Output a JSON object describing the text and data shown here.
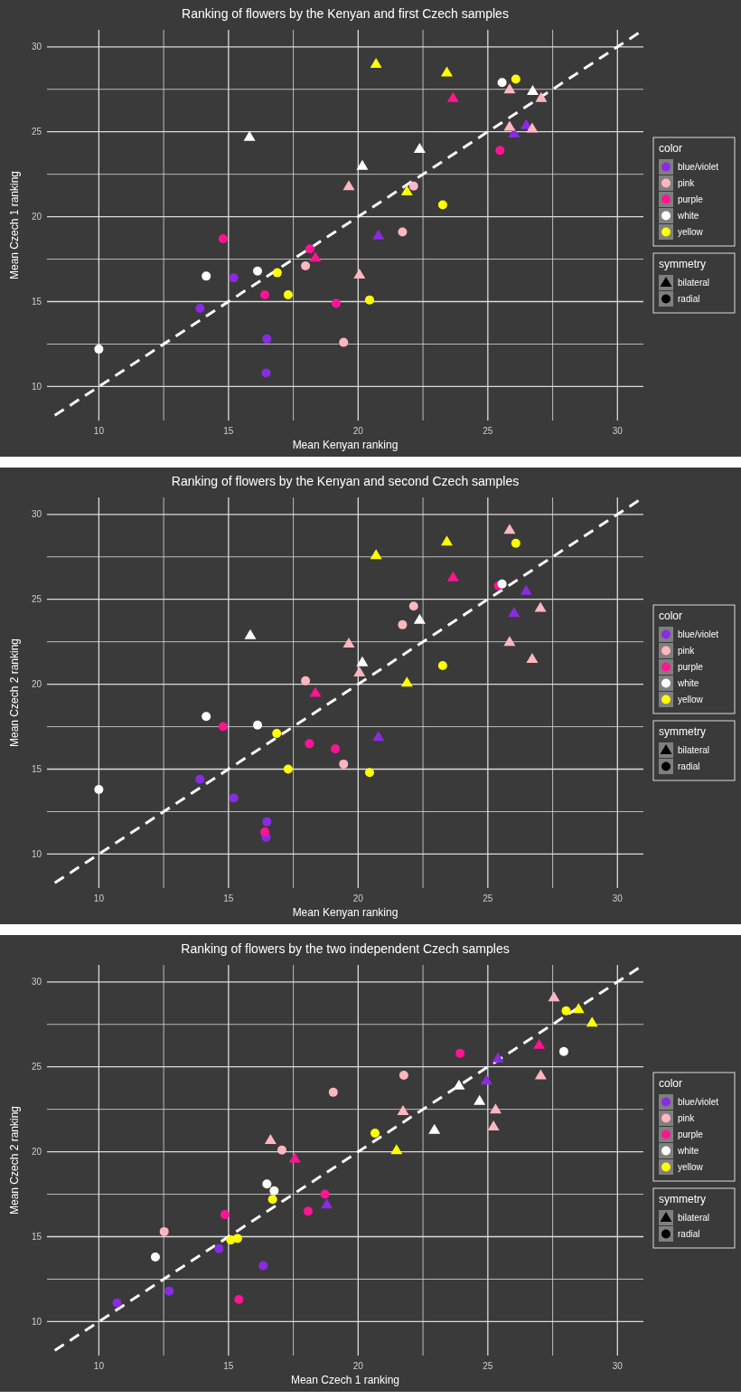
{
  "chart_data": [
    {
      "type": "scatter",
      "title": "Ranking of flowers by the Kenyan and first Czech samples",
      "xlabel": "Mean Kenyan ranking",
      "ylabel": "Mean Czech 1 ranking",
      "xlim": [
        8,
        31
      ],
      "ylim": [
        8,
        31
      ],
      "xticks": [
        10,
        {
          "value": 12.5,
          "label": null
        },
        15,
        {
          "value": 17.5,
          "label": null
        },
        20,
        {
          "value": 22.5,
          "label": null
        },
        25,
        {
          "value": 27.5,
          "label": null
        },
        30
      ],
      "yticks": [
        10,
        {
          "value": 12.5,
          "label": null
        },
        15,
        {
          "value": 17.5,
          "label": null
        },
        20,
        {
          "value": 22.5,
          "label": null
        },
        25,
        {
          "value": 27.5,
          "label": null
        },
        30
      ],
      "grid": true,
      "legend": "right",
      "legend_title": "color",
      "annotations": [
        "symmetry",
        "bilateral",
        "radial"
      ],
      "series": [
        {
          "type": "line",
          "color": "#ffffff",
          "line_style": "dashed",
          "x": [
            8.3,
            31
          ],
          "values": [
            8.3,
            31
          ]
        },
        {
          "name": "blue/violet",
          "color": "#8a2be2",
          "marker": "circle",
          "x": [
            15.2,
            13.9,
            16.48,
            16.45
          ],
          "values": [
            16.4,
            14.6,
            12.8,
            10.8
          ]
        },
        {
          "color": "#8a2be2",
          "marker": "triangle",
          "x": [
            20.78,
            26.48,
            26.01
          ],
          "values": [
            18.9,
            25.4,
            24.9
          ]
        },
        {
          "name": "pink",
          "color": "#ffb6c1",
          "marker": "circle",
          "x": [
            17.97,
            19.44,
            22.14,
            21.71
          ],
          "values": [
            17.1,
            12.6,
            21.8,
            19.1
          ]
        },
        {
          "color": "#ffb6c1",
          "marker": "triangle",
          "x": [
            25.84,
            27.06,
            25.84,
            26.71,
            19.64,
            20.05
          ],
          "values": [
            27.5,
            27.0,
            25.3,
            25.2,
            21.8,
            16.6
          ]
        },
        {
          "name": "purple",
          "color": "#ff1493",
          "marker": "circle",
          "x": [
            14.79,
            18.14,
            16.4,
            19.15,
            25.47
          ],
          "values": [
            18.7,
            18.1,
            15.4,
            14.9,
            23.9
          ]
        },
        {
          "color": "#ff1493",
          "marker": "triangle",
          "x": [
            18.35,
            23.66
          ],
          "values": [
            17.6,
            27.0
          ]
        },
        {
          "name": "white",
          "color": "#ffffff",
          "marker": "circle",
          "x": [
            10.0,
            14.14,
            16.12,
            25.55
          ],
          "values": [
            12.2,
            16.5,
            16.8,
            27.9
          ]
        },
        {
          "color": "#ffffff",
          "marker": "triangle",
          "x": [
            15.81,
            26.73,
            22.37,
            20.16
          ],
          "values": [
            24.7,
            27.4,
            24.0,
            23.0
          ]
        },
        {
          "name": "yellow",
          "color": "#ffff00",
          "marker": "circle",
          "x": [
            16.88,
            17.3,
            26.08,
            23.26,
            20.44
          ],
          "values": [
            16.7,
            15.4,
            28.1,
            20.7,
            15.1
          ]
        },
        {
          "color": "#ffff00",
          "marker": "triangle",
          "x": [
            20.69,
            23.42,
            21.88
          ],
          "values": [
            29.0,
            28.5,
            21.5
          ]
        }
      ]
    },
    {
      "type": "scatter",
      "title": "Ranking of flowers by the Kenyan and second Czech samples",
      "xlabel": "Mean Kenyan ranking",
      "ylabel": "Mean Czech 2 ranking",
      "xlim": [
        8,
        31
      ],
      "ylim": [
        8,
        31
      ],
      "xticks": [
        10,
        {
          "value": 12.5,
          "label": null
        },
        15,
        {
          "value": 17.5,
          "label": null
        },
        20,
        {
          "value": 22.5,
          "label": null
        },
        25,
        {
          "value": 27.5,
          "label": null
        },
        30
      ],
      "yticks": [
        10,
        {
          "value": 12.5,
          "label": null
        },
        15,
        {
          "value": 17.5,
          "label": null
        },
        20,
        {
          "value": 22.5,
          "label": null
        },
        25,
        {
          "value": 27.5,
          "label": null
        },
        30
      ],
      "grid": true,
      "legend": "right",
      "legend_title": "color",
      "annotations": [
        "symmetry",
        "bilateral",
        "radial"
      ],
      "series": [
        {
          "type": "line",
          "color": "#ffffff",
          "line_style": "dashed",
          "x": [
            8.3,
            31
          ],
          "values": [
            8.3,
            31
          ]
        },
        {
          "name": "blue/violet",
          "color": "#8a2be2",
          "marker": "circle",
          "x": [
            13.9,
            15.2,
            16.48,
            16.45
          ],
          "values": [
            14.4,
            13.3,
            11.9,
            11.0
          ]
        },
        {
          "color": "#8a2be2",
          "marker": "triangle",
          "x": [
            20.78,
            26.48,
            26.01
          ],
          "values": [
            16.9,
            25.5,
            24.2
          ]
        },
        {
          "name": "pink",
          "color": "#ffb6c1",
          "marker": "circle",
          "x": [
            17.97,
            19.44,
            22.14,
            21.71
          ],
          "values": [
            20.2,
            15.3,
            24.6,
            23.5
          ]
        },
        {
          "color": "#ffb6c1",
          "marker": "triangle",
          "x": [
            25.84,
            27.03,
            19.64,
            25.84,
            26.71,
            20.05
          ],
          "values": [
            29.1,
            24.5,
            22.4,
            22.5,
            21.5,
            20.7
          ]
        },
        {
          "name": "purple",
          "color": "#ff1493",
          "marker": "circle",
          "x": [
            14.79,
            18.12,
            19.12,
            16.4,
            25.41
          ],
          "values": [
            17.5,
            16.5,
            16.2,
            11.3,
            25.8
          ]
        },
        {
          "color": "#ff1493",
          "marker": "triangle",
          "x": [
            18.35,
            23.66
          ],
          "values": [
            19.5,
            26.3
          ]
        },
        {
          "name": "white",
          "color": "#ffffff",
          "marker": "circle",
          "x": [
            10.0,
            14.14,
            16.12,
            25.55
          ],
          "values": [
            13.8,
            18.1,
            17.6,
            25.9
          ]
        },
        {
          "color": "#ffffff",
          "marker": "triangle",
          "x": [
            15.84,
            22.37,
            20.16
          ],
          "values": [
            22.9,
            23.8,
            21.3
          ]
        },
        {
          "name": "yellow",
          "color": "#ffff00",
          "marker": "circle",
          "x": [
            16.86,
            17.3,
            26.08,
            23.26,
            20.44
          ],
          "values": [
            17.1,
            15.0,
            28.3,
            21.1,
            14.8
          ]
        },
        {
          "color": "#ffff00",
          "marker": "triangle",
          "x": [
            23.42,
            20.69,
            21.88
          ],
          "values": [
            28.4,
            27.6,
            20.1
          ]
        }
      ]
    },
    {
      "type": "scatter",
      "title": "Ranking of flowers by the two independent Czech samples",
      "xlabel": "Mean Czech 1 ranking",
      "ylabel": "Mean Czech 2 ranking",
      "xlim": [
        8,
        31
      ],
      "ylim": [
        8,
        31
      ],
      "xticks": [
        10,
        {
          "value": 12.5,
          "label": null
        },
        15,
        {
          "value": 17.5,
          "label": null
        },
        20,
        {
          "value": 22.5,
          "label": null
        },
        25,
        {
          "value": 27.5,
          "label": null
        },
        30
      ],
      "yticks": [
        10,
        {
          "value": 12.5,
          "label": null
        },
        15,
        {
          "value": 17.5,
          "label": null
        },
        20,
        {
          "value": 22.5,
          "label": null
        },
        25,
        {
          "value": 27.5,
          "label": null
        },
        30
      ],
      "grid": true,
      "legend": "right",
      "legend_title": "color",
      "annotations": [
        "symmetry",
        "bilateral",
        "radial"
      ],
      "series": [
        {
          "type": "line",
          "color": "#ffffff",
          "line_style": "dashed",
          "x": [
            8.3,
            31
          ],
          "values": [
            8.3,
            31
          ]
        },
        {
          "name": "blue/violet",
          "color": "#8a2be2",
          "marker": "circle",
          "x": [
            14.63,
            16.34,
            12.71,
            10.7
          ],
          "values": [
            14.3,
            13.3,
            11.8,
            11.1
          ]
        },
        {
          "color": "#8a2be2",
          "marker": "triangle",
          "x": [
            18.79,
            25.39,
            24.95
          ],
          "values": [
            16.9,
            25.5,
            24.2
          ]
        },
        {
          "name": "pink",
          "color": "#ffb6c1",
          "marker": "circle",
          "x": [
            19.04,
            17.06,
            12.52,
            21.76
          ],
          "values": [
            23.5,
            20.1,
            15.3,
            24.5
          ]
        },
        {
          "color": "#ffb6c1",
          "marker": "triangle",
          "x": [
            16.62,
            27.55,
            27.04,
            25.3,
            21.73,
            25.22
          ],
          "values": [
            20.7,
            29.1,
            24.5,
            22.5,
            22.4,
            21.5
          ]
        },
        {
          "name": "purple",
          "color": "#ff1493",
          "marker": "circle",
          "x": [
            18.72,
            18.07,
            14.86,
            15.4,
            23.93
          ],
          "values": [
            17.5,
            16.5,
            16.3,
            11.3,
            25.8
          ]
        },
        {
          "color": "#ff1493",
          "marker": "triangle",
          "x": [
            17.56,
            26.98
          ],
          "values": [
            19.6,
            26.3
          ]
        },
        {
          "name": "white",
          "color": "#ffffff",
          "marker": "circle",
          "x": [
            16.48,
            16.76,
            12.18,
            27.93
          ],
          "values": [
            18.1,
            17.7,
            13.8,
            25.9
          ]
        },
        {
          "color": "#ffffff",
          "marker": "triangle",
          "x": [
            23.89,
            24.68,
            22.94
          ],
          "values": [
            23.9,
            23.0,
            21.3
          ]
        },
        {
          "name": "yellow",
          "color": "#ffff00",
          "marker": "circle",
          "x": [
            16.7,
            15.09,
            15.35,
            28.02,
            20.65
          ],
          "values": [
            17.2,
            14.8,
            14.9,
            28.3,
            21.1
          ]
        },
        {
          "color": "#ffff00",
          "marker": "triangle",
          "x": [
            28.5,
            29.02,
            21.48
          ],
          "values": [
            28.4,
            27.6,
            20.1
          ]
        }
      ]
    }
  ]
}
